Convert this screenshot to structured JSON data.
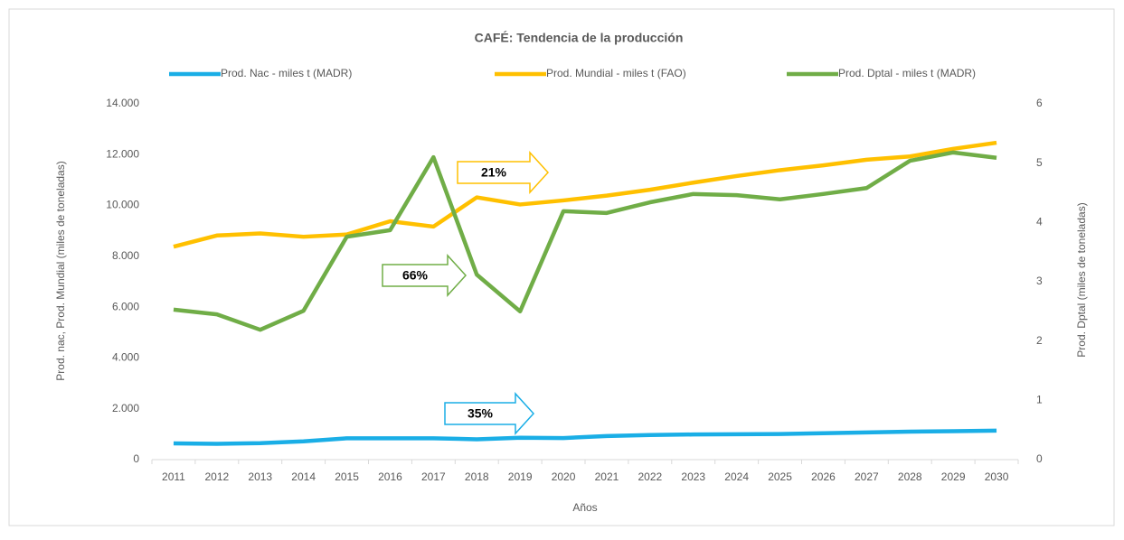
{
  "chart_data": {
    "type": "line",
    "title": "CAFÉ: Tendencia de la producción",
    "xlabel": "Años",
    "ylabel": "Prod. nac, Prod. Mundial (miles de toneladas)",
    "y2label": "Prod. Dptal (miles de toneladas)",
    "categories": [
      "2011",
      "2012",
      "2013",
      "2014",
      "2015",
      "2016",
      "2017",
      "2018",
      "2019",
      "2020",
      "2021",
      "2022",
      "2023",
      "2024",
      "2025",
      "2026",
      "2027",
      "2028",
      "2029",
      "2030"
    ],
    "series": [
      {
        "name": "Prod. Nac - miles t (MADR)",
        "color": "#1aaee6",
        "values": [
          640,
          620,
          650,
          720,
          840,
          840,
          840,
          800,
          860,
          850,
          930,
          970,
          990,
          1000,
          1010,
          1040,
          1070,
          1100,
          1120,
          1140
        ]
      },
      {
        "name": "Prod. Mundial - miles t (FAO)",
        "color": "#ffc000",
        "values": [
          8380,
          8820,
          8900,
          8770,
          8860,
          9380,
          9170,
          10320,
          10040,
          10200,
          10390,
          10620,
          10900,
          11160,
          11390,
          11580,
          11800,
          11930,
          12230,
          12470
        ]
      },
      {
        "name": "Prod. Dptal - miles t (MADR)",
        "color": "#70ad47",
        "axis": "y2",
        "values": [
          2.53,
          2.45,
          2.19,
          2.51,
          3.76,
          3.87,
          5.1,
          3.12,
          2.5,
          4.19,
          4.16,
          4.34,
          4.48,
          4.46,
          4.39,
          4.48,
          4.58,
          5.04,
          5.18,
          5.09
        ]
      }
    ],
    "ylim": [
      0,
      14000
    ],
    "yticks": [
      0,
      {
        "value": 2000,
        "label": "2.000"
      },
      {
        "value": 4000,
        "label": "4.000"
      },
      {
        "value": 6000,
        "label": "6.000"
      },
      {
        "value": 8000,
        "label": "8.000"
      },
      {
        "value": 10000,
        "label": "10.000"
      },
      {
        "value": 12000,
        "label": "12.000"
      },
      {
        "value": 14000,
        "label": "14.000"
      }
    ],
    "y2lim": [
      0,
      6
    ],
    "y2ticks": [
      0,
      1,
      2,
      3,
      4,
      5,
      6
    ],
    "legend": "top",
    "annotations": [
      {
        "text": "21%",
        "color": "#ffc000"
      },
      {
        "text": "66%",
        "color": "#70ad47"
      },
      {
        "text": "35%",
        "color": "#1aaee6"
      }
    ]
  }
}
